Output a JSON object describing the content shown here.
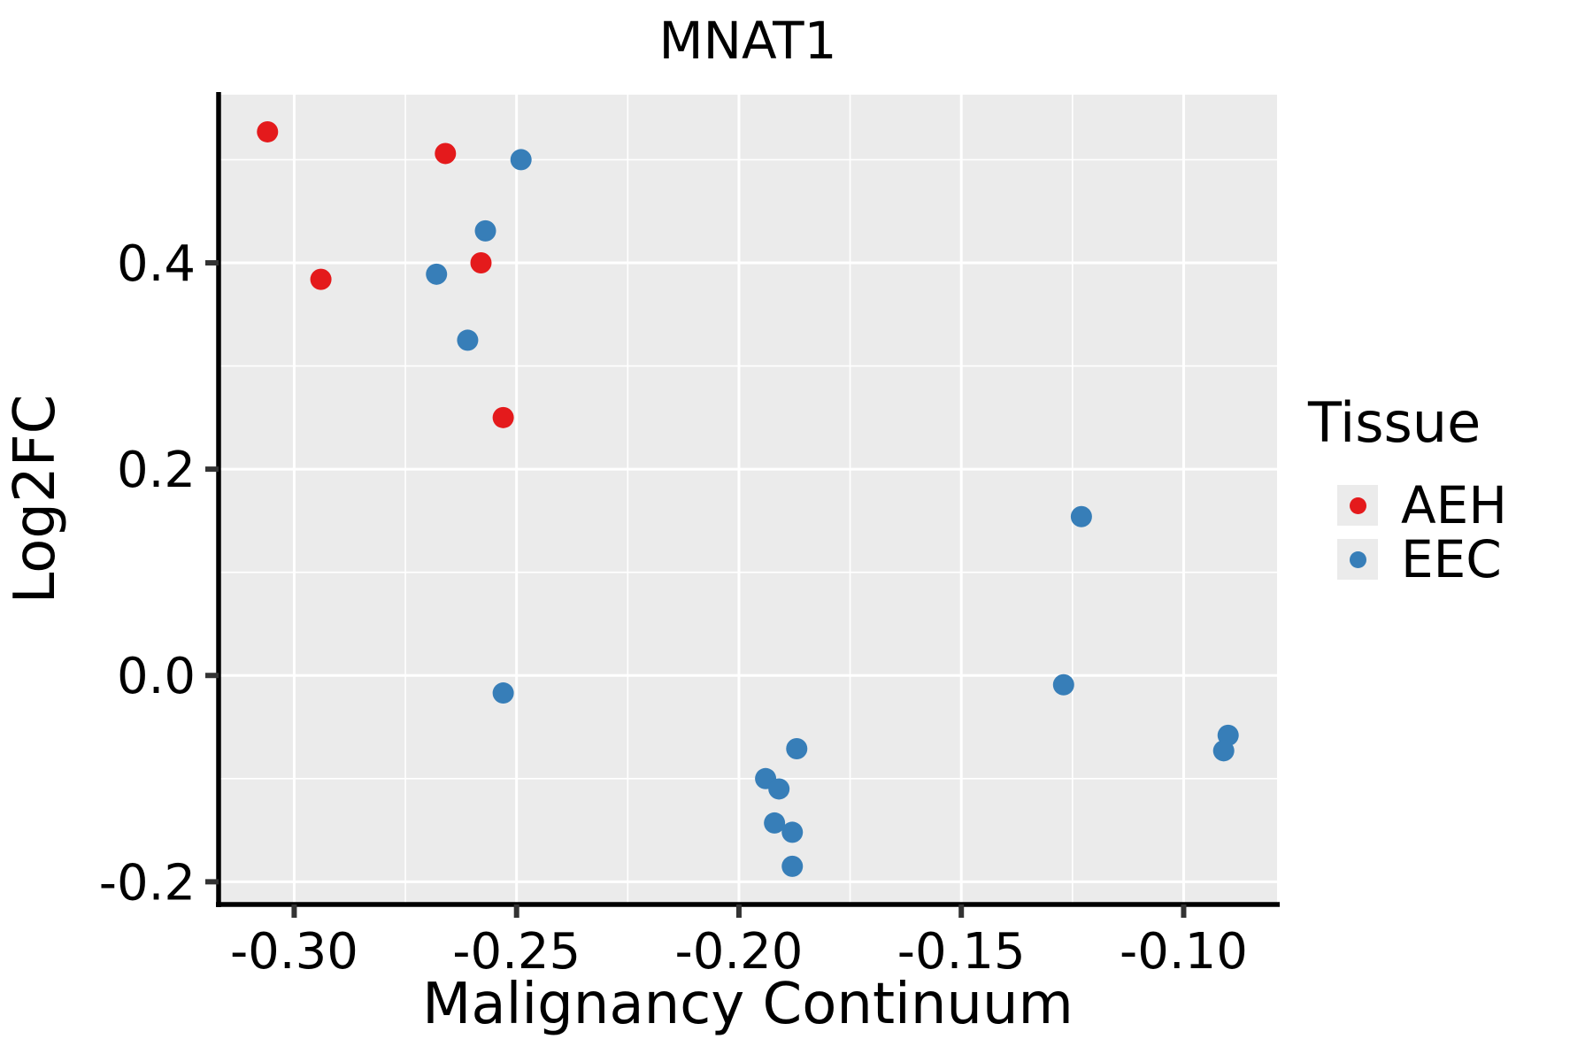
{
  "title": "MNAT1",
  "axes": {
    "x_label": "Malignancy Continuum",
    "y_label": "Log2FC"
  },
  "legend": {
    "title": "Tissue",
    "entries": [
      {
        "label": "AEH",
        "color": "#E41A1C"
      },
      {
        "label": "EEC",
        "color": "#377EB8"
      }
    ]
  },
  "colors": {
    "panel_bg": "#EBEBEB",
    "gridline": "#FFFFFF",
    "spine": "#000000",
    "tick": "#333333",
    "text": "#000000",
    "aeh": "#E41A1C",
    "eec": "#377EB8"
  },
  "chart_data": {
    "type": "scatter",
    "title": "MNAT1",
    "xlabel": "Malignancy Continuum",
    "ylabel": "Log2FC",
    "xlim": [
      -0.317,
      -0.079
    ],
    "ylim": [
      -0.222,
      0.563
    ],
    "grid": "on",
    "legend_position": "right",
    "x_ticks": [
      -0.3,
      -0.25,
      -0.2,
      -0.15,
      -0.1
    ],
    "x_tick_labels": [
      "-0.30",
      "-0.25",
      "-0.20",
      "-0.15",
      "-0.10"
    ],
    "y_ticks": [
      -0.2,
      0.0,
      0.2,
      0.4
    ],
    "y_tick_labels": [
      "-0.2",
      "0.0",
      "0.2",
      "0.4"
    ],
    "x_minor_ticks": [
      -0.275,
      -0.225,
      -0.175,
      -0.125
    ],
    "y_minor_ticks": [
      -0.1,
      0.1,
      0.3,
      0.5
    ],
    "series": [
      {
        "name": "AEH",
        "color": "#E41A1C",
        "points": [
          [
            -0.306,
            0.527
          ],
          [
            -0.266,
            0.506
          ],
          [
            -0.294,
            0.384
          ],
          [
            -0.258,
            0.4
          ],
          [
            -0.253,
            0.25
          ]
        ]
      },
      {
        "name": "EEC",
        "color": "#377EB8",
        "points": [
          [
            -0.249,
            0.5
          ],
          [
            -0.257,
            0.431
          ],
          [
            -0.268,
            0.389
          ],
          [
            -0.261,
            0.325
          ],
          [
            -0.253,
            -0.017
          ],
          [
            -0.187,
            -0.071
          ],
          [
            -0.194,
            -0.1
          ],
          [
            -0.191,
            -0.11
          ],
          [
            -0.192,
            -0.143
          ],
          [
            -0.188,
            -0.152
          ],
          [
            -0.188,
            -0.185
          ],
          [
            -0.123,
            0.154
          ],
          [
            -0.127,
            -0.009
          ],
          [
            -0.09,
            -0.058
          ],
          [
            -0.091,
            -0.073
          ]
        ]
      }
    ]
  }
}
